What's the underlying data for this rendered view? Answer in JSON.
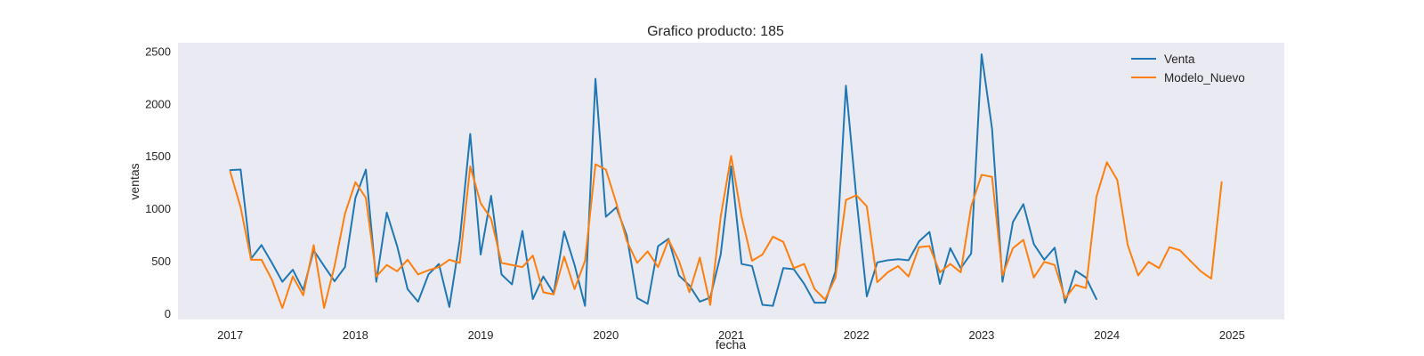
{
  "chart_data": {
    "type": "line",
    "title": "Grafico producto: 185",
    "xlabel": "fecha",
    "ylabel": "ventas",
    "x_start": "2017-01",
    "x_ticks": [
      "2017",
      "2018",
      "2019",
      "2020",
      "2021",
      "2022",
      "2023",
      "2024",
      "2025"
    ],
    "y_ticks": [
      0,
      500,
      1000,
      1500,
      2000,
      2500
    ],
    "xlim": [
      "2016-08",
      "2025-06"
    ],
    "ylim": [
      -60,
      2580
    ],
    "grid": false,
    "legend_position": "top-right",
    "background_color": "#eaeaf2",
    "series": [
      {
        "name": "Venta",
        "color": "#1f77b4",
        "values": [
          1365,
          1370,
          520,
          650,
          480,
          300,
          415,
          220,
          600,
          450,
          305,
          440,
          1100,
          1370,
          300,
          960,
          640,
          230,
          110,
          370,
          470,
          60,
          700,
          1710,
          560,
          1120,
          370,
          275,
          785,
          135,
          350,
          190,
          780,
          460,
          70,
          2235,
          920,
          1010,
          740,
          145,
          90,
          640,
          710,
          360,
          265,
          110,
          150,
          560,
          1400,
          470,
          450,
          80,
          70,
          430,
          420,
          280,
          100,
          100,
          400,
          2170,
          1100,
          160,
          485,
          505,
          515,
          505,
          685,
          775,
          280,
          620,
          430,
          570,
          2470,
          1760,
          300,
          870,
          1040,
          660,
          510,
          625,
          100,
          405,
          340,
          135
        ]
      },
      {
        "name": "Modelo_Nuevo",
        "color": "#ff7f0e",
        "values": [
          1350,
          1010,
          510,
          510,
          320,
          50,
          350,
          170,
          650,
          50,
          450,
          950,
          1250,
          1100,
          350,
          460,
          400,
          510,
          370,
          410,
          440,
          510,
          480,
          1400,
          1050,
          900,
          480,
          460,
          440,
          550,
          200,
          180,
          540,
          230,
          500,
          1420,
          1370,
          1050,
          690,
          480,
          590,
          440,
          700,
          500,
          200,
          530,
          80,
          920,
          1500,
          920,
          500,
          560,
          730,
          680,
          430,
          470,
          230,
          130,
          340,
          1080,
          1125,
          1020,
          295,
          390,
          450,
          350,
          630,
          640,
          390,
          470,
          390,
          1020,
          1320,
          1300,
          360,
          620,
          700,
          340,
          490,
          460,
          140,
          270,
          240,
          1110,
          1440,
          1270,
          650,
          360,
          490,
          430,
          630,
          600,
          500,
          400,
          330,
          1250
        ]
      }
    ]
  }
}
